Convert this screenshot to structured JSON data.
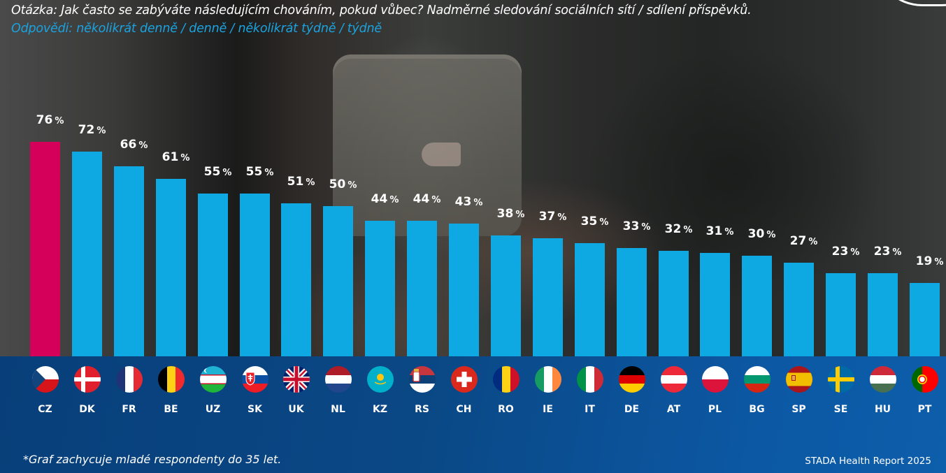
{
  "header": {
    "question": "Otázka: Jak často se zabýváte následujícím chováním, pokud vůbec? Nadměrné sledování sociálních sítí / sdílení příspěvků.",
    "answers": "Odpovědi: několikrát denně / denně / několikrát týdně / týdně"
  },
  "footer": {
    "footnote": "*Graf zachycuje mladé respondenty do 35 let.",
    "source": "STADA Health Report 2025"
  },
  "colors": {
    "highlight_bar": "#d5005a",
    "bar": "#0ea8e2",
    "band": "#0a4885",
    "answers_text": "#1aa3e0"
  },
  "chart_data": {
    "type": "bar",
    "title": "Otázka: Jak často se zabýváte následujícím chováním, pokud vůbec? Nadměrné sledování sociálních sítí / sdílení příspěvků.",
    "subtitle": "Odpovědi: několikrát denně / denně / několikrát týdně / týdně",
    "xlabel": "",
    "ylabel": "",
    "unit": "%",
    "categories": [
      "CZ",
      "DK",
      "FR",
      "BE",
      "UZ",
      "SK",
      "UK",
      "NL",
      "KZ",
      "RS",
      "CH",
      "RO",
      "IE",
      "IT",
      "DE",
      "AT",
      "PL",
      "BG",
      "SP",
      "SE",
      "HU",
      "PT"
    ],
    "values": [
      76,
      72,
      66,
      61,
      55,
      55,
      51,
      50,
      44,
      44,
      43,
      38,
      37,
      35,
      33,
      32,
      31,
      30,
      27,
      23,
      23,
      19
    ],
    "highlight": "CZ",
    "data_labels": [
      "76 %",
      "72 %",
      "66 %",
      "61 %",
      "55 %",
      "55 %",
      "51 %",
      "50 %",
      "44 %",
      "44 %",
      "43 %",
      "38 %",
      "37 %",
      "35 %",
      "33 %",
      "32 %",
      "31 %",
      "30 %",
      "27 %",
      "23 %",
      "23 %",
      "19 %"
    ],
    "flags": [
      "czech-flag",
      "denmark-flag",
      "france-flag",
      "belgium-flag",
      "uzbekistan-flag",
      "slovakia-flag",
      "uk-flag",
      "netherlands-flag",
      "kazakhstan-flag",
      "serbia-flag",
      "switzerland-flag",
      "romania-flag",
      "ireland-flag",
      "italy-flag",
      "germany-flag",
      "austria-flag",
      "poland-flag",
      "bulgaria-flag",
      "spain-flag",
      "sweden-flag",
      "hungary-flag",
      "portugal-flag"
    ],
    "grid": false,
    "legend": "none"
  }
}
